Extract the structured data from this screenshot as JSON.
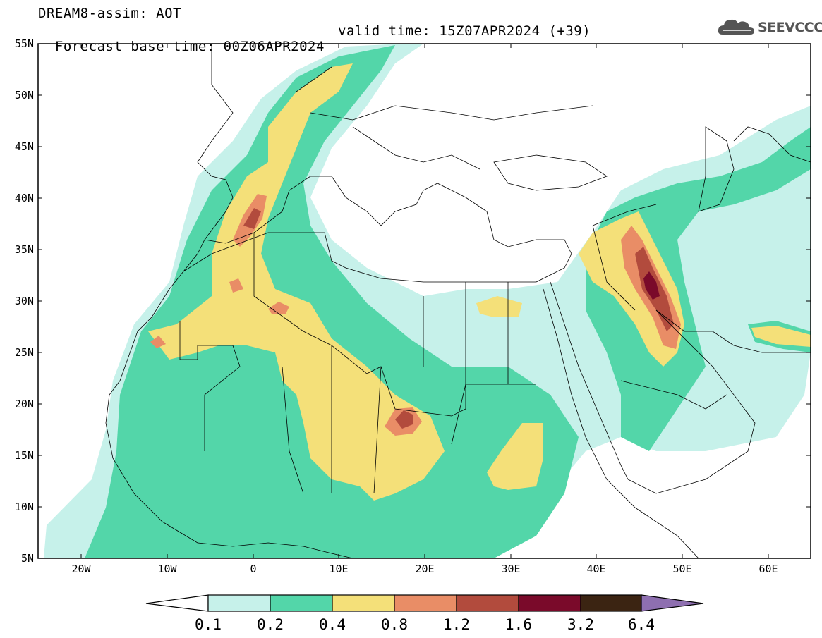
{
  "header": {
    "line1": "DREAM8-assim: AOT",
    "forecast": "Forecast base time: 00Z06APR2024",
    "valid": "valid time: 15Z07APR2024 (+39)"
  },
  "logo": {
    "text": "SEEVCCC",
    "icon": "cloud-icon"
  },
  "map": {
    "lat_labels": [
      "55N",
      "50N",
      "45N",
      "40N",
      "35N",
      "30N",
      "25N",
      "20N",
      "15N",
      "10N",
      "5N"
    ],
    "lon_labels": [
      "20W",
      "10W",
      "0",
      "10E",
      "20E",
      "30E",
      "40E",
      "50E",
      "60E"
    ]
  },
  "colorbar": {
    "levels": [
      "0.1",
      "0.2",
      "0.4",
      "0.8",
      "1.2",
      "1.6",
      "3.2",
      "6.4"
    ],
    "colors": [
      "#c6f1ea",
      "#53d6a9",
      "#f4e079",
      "#e98d66",
      "#b24b3d",
      "#7a0a2a",
      "#3b2412",
      "#8e6fb0"
    ]
  }
}
